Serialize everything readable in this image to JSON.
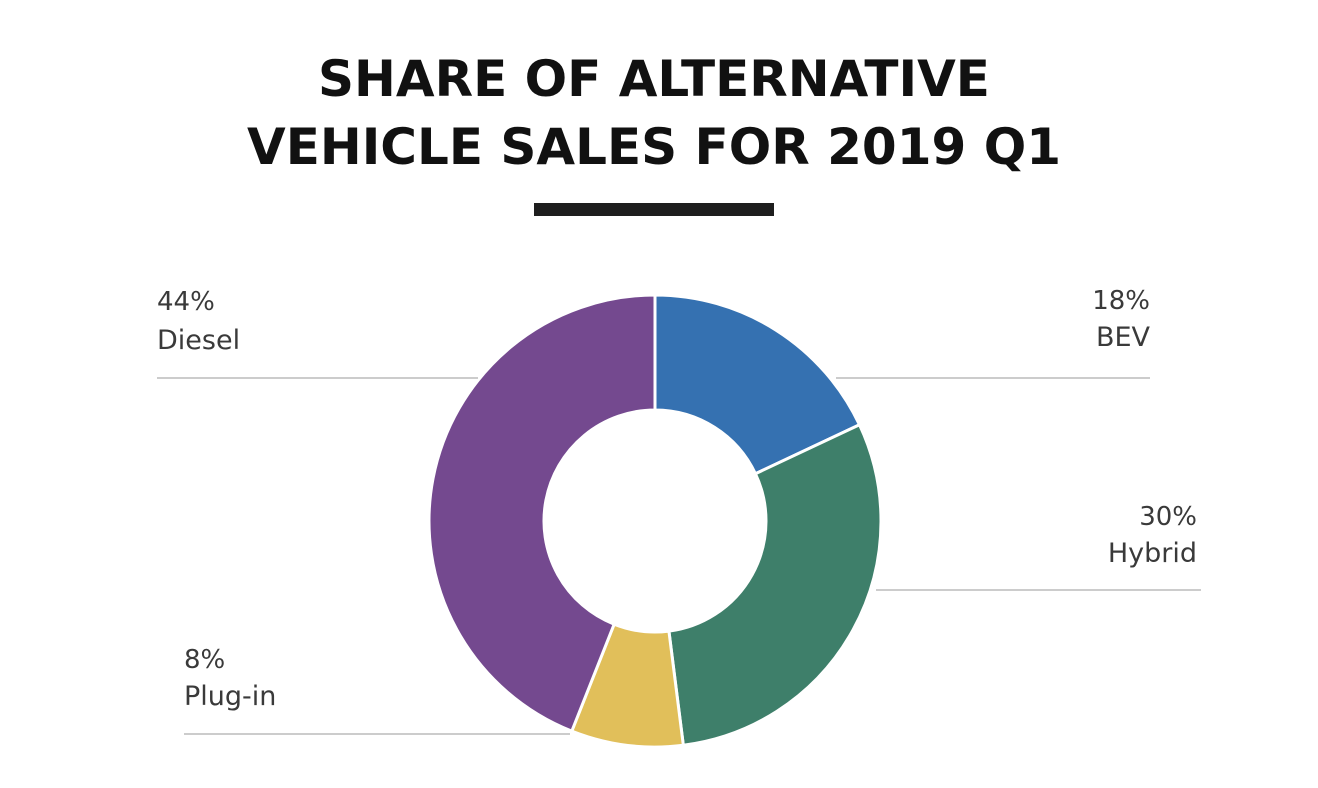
{
  "chart_data": {
    "type": "pie",
    "title_lines": [
      "SHARE OF ALTERNATIVE",
      "VEHICLE SALES FOR 2019 Q1"
    ],
    "donut": true,
    "start_angle_deg": 0,
    "direction": "clockwise",
    "slices": [
      {
        "name": "BEV",
        "value": 18,
        "label": "18%",
        "color": "#3571b1"
      },
      {
        "name": "Hybrid",
        "value": 30,
        "label": "30%",
        "color": "#3e7f6a"
      },
      {
        "name": "Plug-in",
        "value": 8,
        "label": "8%",
        "color": "#e1bf5a"
      },
      {
        "name": "Diesel",
        "value": 44,
        "label": "44%",
        "color": "#74498f"
      }
    ],
    "legend_position": "none",
    "grid": false
  },
  "colors": {
    "title": "#111111",
    "underline": "#1e1e1e",
    "label_text": "#3a3a3a",
    "leader_line": "#cccccc",
    "slice_border": "#ffffff"
  }
}
